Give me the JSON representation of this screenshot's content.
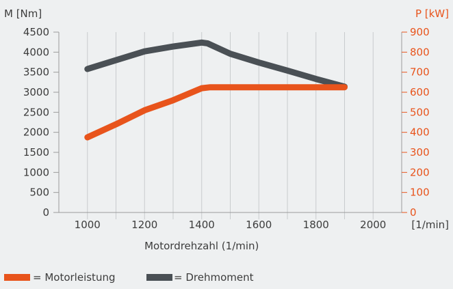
{
  "chart_data": {
    "type": "line",
    "title": "",
    "xlabel": "Motordrehzahl (1/min)",
    "x_unit_label": "[1/min]",
    "ylabel_left": "M [Nm]",
    "ylabel_right": "P [kW]",
    "xlim": [
      900,
      2100
    ],
    "x_ticks": [
      1000,
      1200,
      1400,
      1600,
      1800,
      2000
    ],
    "ylim_left": [
      0,
      4500
    ],
    "y_ticks_left": [
      0,
      500,
      1000,
      1500,
      2000,
      2500,
      3000,
      3500,
      4000,
      4500
    ],
    "ylim_right": [
      0,
      900
    ],
    "y_ticks_right": [
      0,
      100,
      200,
      300,
      400,
      500,
      600,
      700,
      800,
      900
    ],
    "grid": "vertical",
    "legend_position": "bottom-left",
    "colors": {
      "background": "#eef0f1",
      "axis": "#9a9a9a",
      "grid": "#c8cbcd",
      "text": "#3c3c3c",
      "power": "#e8541c",
      "torque": "#4a5055"
    },
    "series": [
      {
        "name": "Drehmoment",
        "legend_label": "= Drehmoment",
        "axis": "left",
        "color_key": "torque",
        "x": [
          1000,
          1100,
          1200,
          1300,
          1400,
          1420,
          1500,
          1600,
          1700,
          1800,
          1900
        ],
        "y": [
          3580,
          3800,
          4020,
          4140,
          4240,
          4220,
          3960,
          3740,
          3540,
          3330,
          3140
        ]
      },
      {
        "name": "Motorleistung",
        "legend_label": "= Motorleistung",
        "axis": "right",
        "color_key": "power",
        "x": [
          1000,
          1100,
          1200,
          1300,
          1400,
          1430,
          1500,
          1600,
          1700,
          1800,
          1900
        ],
        "y": [
          375,
          440,
          510,
          560,
          620,
          625,
          625,
          625,
          625,
          625,
          625
        ]
      }
    ]
  }
}
